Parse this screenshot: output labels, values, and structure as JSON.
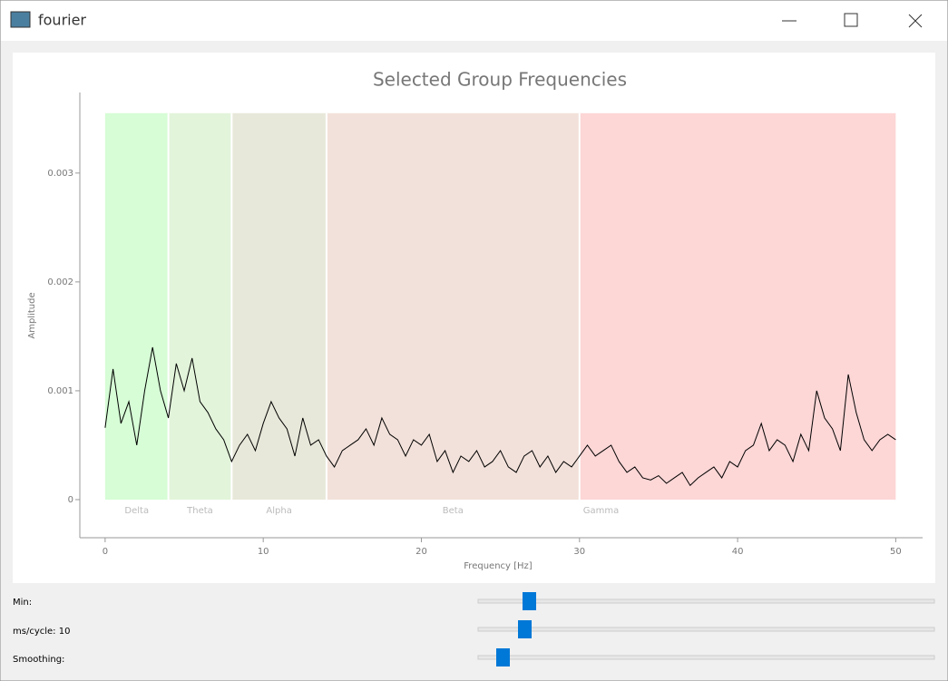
{
  "window": {
    "title": "fourier"
  },
  "chart_data": {
    "type": "line",
    "title": "Selected Group Frequencies",
    "x_label": "Frequency [Hz]",
    "y_label": "Amplitude",
    "xlim": [
      -1.6,
      51.7
    ],
    "ylim": [
      -0.00035,
      0.00374
    ],
    "xticks": [
      0,
      10,
      20,
      30,
      40,
      50
    ],
    "yticks": [
      0,
      0.001,
      0.002,
      0.003
    ],
    "band_top": 0.00355,
    "bands": [
      {
        "name": "Delta",
        "start": 0,
        "end": 4,
        "color": "#d6fdd6"
      },
      {
        "name": "Theta",
        "start": 4,
        "end": 8,
        "color": "#e2f4da"
      },
      {
        "name": "Alpha",
        "start": 8,
        "end": 14,
        "color": "#e8e8da"
      },
      {
        "name": "Beta",
        "start": 14,
        "end": 30,
        "color": "#f2e1da"
      },
      {
        "name": "Gamma",
        "start": 30,
        "end": 50,
        "color": "#fdd6d6"
      }
    ],
    "x": [
      0,
      0.5,
      1,
      1.5,
      2,
      2.5,
      3,
      3.5,
      4,
      4.5,
      5,
      5.5,
      6,
      6.5,
      7,
      7.5,
      8,
      8.5,
      9,
      9.5,
      10,
      10.5,
      11,
      11.5,
      12,
      12.5,
      13,
      13.5,
      14,
      14.5,
      15,
      15.5,
      16,
      16.5,
      17,
      17.5,
      18,
      18.5,
      19,
      19.5,
      20,
      20.5,
      21,
      21.5,
      22,
      22.5,
      23,
      23.5,
      24,
      24.5,
      25,
      25.5,
      26,
      26.5,
      27,
      27.5,
      28,
      28.5,
      29,
      29.5,
      30,
      30.5,
      31,
      31.5,
      32,
      32.5,
      33,
      33.5,
      34,
      34.5,
      35,
      35.5,
      36,
      36.5,
      37,
      37.5,
      38,
      38.5,
      39,
      39.5,
      40,
      40.5,
      41,
      41.5,
      42,
      42.5,
      43,
      43.5,
      44,
      44.5,
      45,
      45.5,
      46,
      46.5,
      47,
      47.5,
      48,
      48.5,
      49,
      49.5,
      50
    ],
    "series": [
      {
        "color": "#000000",
        "values": [
          0.00066,
          0.0012,
          0.0007,
          0.0009,
          0.0005,
          0.001,
          0.0014,
          0.001,
          0.00075,
          0.00125,
          0.001,
          0.0013,
          0.0009,
          0.0008,
          0.00065,
          0.00055,
          0.00035,
          0.0005,
          0.0006,
          0.00045,
          0.0007,
          0.0009,
          0.00075,
          0.00065,
          0.0004,
          0.00075,
          0.0005,
          0.00055,
          0.0004,
          0.0003,
          0.00045,
          0.0005,
          0.00055,
          0.00065,
          0.0005,
          0.00075,
          0.0006,
          0.00055,
          0.0004,
          0.00055,
          0.0005,
          0.0006,
          0.00035,
          0.00045,
          0.00025,
          0.0004,
          0.00035,
          0.00045,
          0.0003,
          0.00035,
          0.00045,
          0.0003,
          0.00025,
          0.0004,
          0.00045,
          0.0003,
          0.0004,
          0.00025,
          0.00035,
          0.0003,
          0.0004,
          0.0005,
          0.0004,
          0.00045,
          0.0005,
          0.00035,
          0.00025,
          0.0003,
          0.0002,
          0.00018,
          0.00022,
          0.00015,
          0.0002,
          0.00025,
          0.00013,
          0.0002,
          0.00025,
          0.0003,
          0.0002,
          0.00035,
          0.0003,
          0.00045,
          0.0005,
          0.0007,
          0.00045,
          0.00055,
          0.0005,
          0.00035,
          0.0006,
          0.00045,
          0.001,
          0.00075,
          0.00065,
          0.00045,
          0.00115,
          0.0008,
          0.00055,
          0.00045,
          0.00055,
          0.0006,
          0.00055
        ]
      }
    ]
  },
  "controls": [
    {
      "label": "Min:"
    },
    {
      "label": "ms/cycle: 10"
    },
    {
      "label": "Smoothing:"
    }
  ]
}
